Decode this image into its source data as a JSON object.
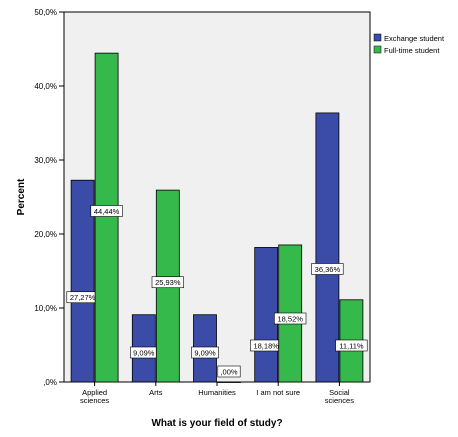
{
  "chart_data": {
    "type": "bar",
    "title": "",
    "xlabel": "What is your field of study?",
    "ylabel": "Percent",
    "categories": [
      "Applied sciences",
      "Arts",
      "Humanities",
      "I am not sure",
      "Social sciences"
    ],
    "category_lines": [
      [
        "Applied",
        "sciences"
      ],
      [
        "Arts"
      ],
      [
        "Humanities"
      ],
      [
        "I am not sure"
      ],
      [
        "Social",
        "sciences"
      ]
    ],
    "series": [
      {
        "name": "Exchange student",
        "color": "#3B4BA8",
        "values": [
          27.27,
          9.09,
          9.09,
          18.18,
          36.36
        ],
        "labels": [
          "27,27%",
          "9,09%",
          "9,09%",
          "18,18%",
          "36,36%"
        ]
      },
      {
        "name": "Full-time student",
        "color": "#35B94A",
        "values": [
          44.44,
          25.93,
          0.0,
          18.52,
          11.11
        ],
        "labels": [
          "44,44%",
          "25,93%",
          ",00%",
          "18,52%",
          "11,11%"
        ]
      }
    ],
    "ylim": [
      0,
      50
    ],
    "yticks": [
      0,
      10,
      20,
      30,
      40,
      50
    ],
    "ytick_labels": [
      ",0%",
      "10,0%",
      "20,0%",
      "30,0%",
      "40,0%",
      "50,0%"
    ],
    "grid": false,
    "legend_position": "top-right",
    "plot_background": "#F0F0F0"
  }
}
